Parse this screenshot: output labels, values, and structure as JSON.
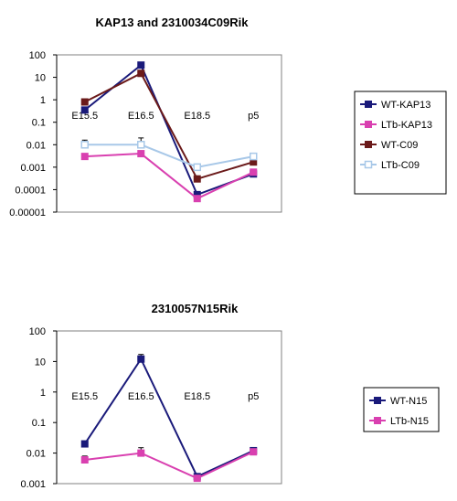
{
  "chart_data": [
    {
      "type": "line",
      "title": "KAP13 and 2310034C09Rik",
      "xlabel": "",
      "ylabel": "",
      "categories": [
        "E15.5",
        "E16.5",
        "E18.5",
        "p5"
      ],
      "y_scale": "log",
      "ylim": [
        1e-05,
        100
      ],
      "y_ticks": [
        "100",
        "10",
        "1",
        "0.1",
        "0.01",
        "0.001",
        "0.0001",
        "0.00001"
      ],
      "grid": false,
      "legend_position": "right",
      "series": [
        {
          "name": "WT-KAP13",
          "color": "#1a1a7a",
          "marker": "square",
          "values": [
            0.35,
            35,
            6e-05,
            0.0005
          ],
          "errors": [
            0,
            5,
            0,
            0
          ]
        },
        {
          "name": "LTb-KAP13",
          "color": "#d940b0",
          "marker": "square",
          "values": [
            0.003,
            0.004,
            4e-05,
            0.0006
          ],
          "errors": [
            0.001,
            0.001,
            0,
            0.0002
          ]
        },
        {
          "name": "WT-C09",
          "color": "#6b1a1a",
          "marker": "square",
          "values": [
            0.8,
            15,
            0.0003,
            0.0017
          ],
          "errors": [
            0,
            0,
            0,
            0
          ]
        },
        {
          "name": "LTb-C09",
          "color": "#a8c8e8",
          "marker": "square-open",
          "values": [
            0.01,
            0.01,
            0.001,
            0.003
          ],
          "errors": [
            0.006,
            0.01,
            0,
            0.001
          ]
        }
      ]
    },
    {
      "type": "line",
      "title": "2310057N15Rik",
      "xlabel": "",
      "ylabel": "",
      "categories": [
        "E15.5",
        "E16.5",
        "E18.5",
        "p5"
      ],
      "y_scale": "log",
      "ylim": [
        0.001,
        100
      ],
      "y_ticks": [
        "100",
        "10",
        "1",
        "0.1",
        "0.01",
        "0.001"
      ],
      "grid": false,
      "legend_position": "right",
      "series": [
        {
          "name": "WT-N15",
          "color": "#1a1a7a",
          "marker": "square",
          "values": [
            0.02,
            12,
            0.0017,
            0.012
          ],
          "errors": [
            0,
            5,
            0.0004,
            0.002
          ]
        },
        {
          "name": "LTb-N15",
          "color": "#d940b0",
          "marker": "square",
          "values": [
            0.006,
            0.01,
            0.0015,
            0.011
          ],
          "errors": [
            0.002,
            0.005,
            0,
            0
          ]
        }
      ]
    }
  ]
}
